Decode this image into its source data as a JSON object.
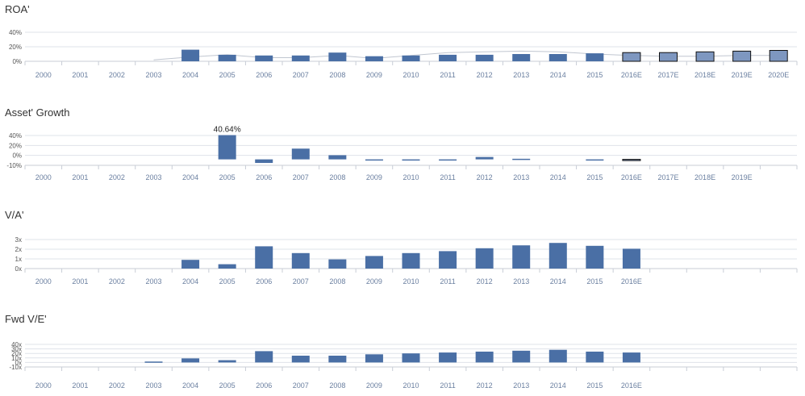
{
  "colors": {
    "bar": "#4a6fa5",
    "bar_estimate": "#7e97c0",
    "bar_estimate_border": "#111111",
    "grid": "#dfe3ea",
    "axis": "#c8cdd6",
    "trend": "#c0c6d0"
  },
  "chart_data": [
    {
      "type": "bar",
      "title": "ROA'",
      "categories": [
        "2000",
        "2001",
        "2002",
        "2003",
        "2004",
        "2005",
        "2006",
        "2007",
        "2008",
        "2009",
        "2010",
        "2011",
        "2012",
        "2013",
        "2014",
        "2015",
        "2016E",
        "2017E",
        "2018E",
        "2019E",
        "2020E"
      ],
      "estimate_categories": [
        "2016E",
        "2017E",
        "2018E",
        "2019E",
        "2020E"
      ],
      "values": [
        null,
        null,
        null,
        null,
        16,
        9,
        8,
        8,
        12,
        7,
        8,
        9,
        9,
        10,
        10,
        11,
        12,
        12,
        13,
        14,
        15
      ],
      "trend_line": [
        null,
        null,
        null,
        2,
        6,
        9,
        5,
        5,
        8,
        4,
        8,
        12,
        13,
        14,
        13,
        10,
        8,
        7,
        7,
        8,
        8
      ],
      "yticks": [
        "40%",
        "20%",
        "0%"
      ],
      "ylim": [
        0,
        40
      ],
      "unit": "%",
      "grid": true
    },
    {
      "type": "bar",
      "title": "Asset' Growth",
      "categories": [
        "2000",
        "2001",
        "2002",
        "2003",
        "2004",
        "2005",
        "2006",
        "2007",
        "2008",
        "2009",
        "2010",
        "2011",
        "2012",
        "2013",
        "2014",
        "2015",
        "2016E",
        "2017E",
        "2018E",
        "2019E"
      ],
      "estimate_categories": [
        "2016E",
        "2017E",
        "2018E",
        "2019E"
      ],
      "values": [
        null,
        null,
        null,
        null,
        null,
        40.64,
        -6,
        18,
        7,
        -0.5,
        -0.5,
        -2,
        4,
        1,
        null,
        -0.5,
        -2,
        null,
        null,
        null
      ],
      "data_labels": {
        "2005": "40.64%"
      },
      "yticks": [
        "40%",
        "20%",
        "0%",
        "-10%"
      ],
      "ylim": [
        -10,
        40
      ],
      "unit": "%",
      "grid": true
    },
    {
      "type": "bar",
      "title": "V/A'",
      "categories": [
        "2000",
        "2001",
        "2002",
        "2003",
        "2004",
        "2005",
        "2006",
        "2007",
        "2008",
        "2009",
        "2010",
        "2011",
        "2012",
        "2013",
        "2014",
        "2015",
        "2016E"
      ],
      "values": [
        null,
        null,
        null,
        null,
        0.9,
        0.45,
        2.3,
        1.6,
        0.95,
        1.3,
        1.6,
        1.8,
        2.1,
        2.4,
        2.65,
        2.35,
        2.05
      ],
      "yticks": [
        "3x",
        "2x",
        "1x",
        "0x"
      ],
      "ylim": [
        0,
        3
      ],
      "unit": "x",
      "grid": true
    },
    {
      "type": "bar",
      "title": "Fwd V/E'",
      "categories": [
        "2000",
        "2001",
        "2002",
        "2003",
        "2004",
        "2005",
        "2006",
        "2007",
        "2008",
        "2009",
        "2010",
        "2011",
        "2012",
        "2013",
        "2014",
        "2015",
        "2016E"
      ],
      "values": [
        null,
        null,
        null,
        2,
        9,
        5,
        25,
        15,
        15,
        18,
        20,
        22,
        24,
        26,
        28,
        24,
        22
      ],
      "yticks": [
        "40x",
        "30x",
        "20x",
        "10x",
        "0x",
        "-10x"
      ],
      "ylim": [
        -10,
        40
      ],
      "unit": "x",
      "grid": true
    }
  ]
}
